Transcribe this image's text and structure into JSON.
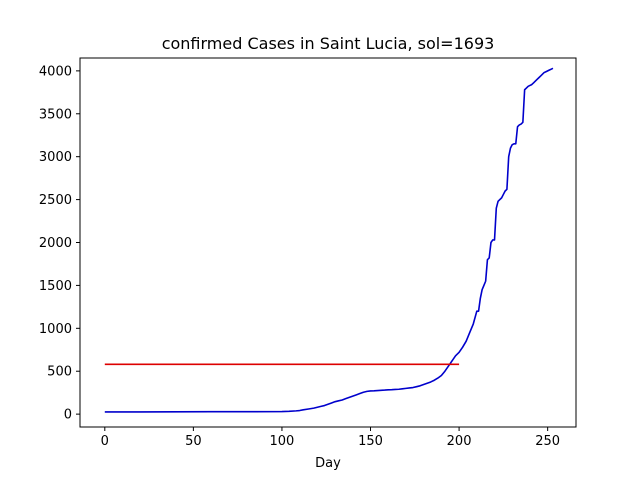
{
  "chart_data": {
    "type": "line",
    "title": "confirmed Cases in Saint Lucia, sol=1693",
    "xlabel": "Day",
    "ylabel": "",
    "xlim": [
      -14,
      266
    ],
    "ylim": [
      -150,
      4150
    ],
    "xticks": [
      0,
      50,
      100,
      150,
      200,
      250
    ],
    "yticks": [
      0,
      500,
      1000,
      1500,
      2000,
      2500,
      3000,
      3500,
      4000
    ],
    "grid": false,
    "legend": "none",
    "series": [
      {
        "color": "#0000cc",
        "x": [
          0,
          20,
          40,
          60,
          80,
          100,
          104,
          108,
          110,
          112,
          115,
          118,
          120,
          122,
          124,
          126,
          128,
          130,
          132,
          134,
          136,
          138,
          140,
          142,
          144,
          146,
          148,
          150,
          152,
          154,
          156,
          158,
          160,
          162,
          164,
          166,
          168,
          170,
          172,
          174,
          176,
          178,
          180,
          182,
          184,
          186,
          188,
          190,
          192,
          194,
          196,
          198,
          200,
          202,
          204,
          206,
          208,
          210,
          211,
          212,
          213,
          214,
          215,
          216,
          217,
          218,
          219,
          220,
          221,
          222,
          223,
          224,
          225,
          226,
          227,
          228,
          229,
          230,
          231,
          232,
          233,
          234,
          235,
          236,
          237,
          238,
          239,
          240,
          241,
          242,
          243,
          244,
          245,
          246,
          247,
          248,
          249,
          250,
          251,
          252,
          253
        ],
        "y": [
          25,
          25,
          27,
          28,
          28,
          30,
          33,
          38,
          42,
          50,
          60,
          70,
          80,
          90,
          100,
          115,
          130,
          145,
          155,
          165,
          180,
          195,
          210,
          225,
          240,
          255,
          265,
          270,
          272,
          275,
          278,
          280,
          283,
          285,
          288,
          290,
          295,
          300,
          305,
          310,
          320,
          330,
          345,
          360,
          375,
          395,
          420,
          450,
          500,
          560,
          620,
          680,
          720,
          780,
          850,
          950,
          1050,
          1200,
          1200,
          1350,
          1450,
          1500,
          1550,
          1800,
          1820,
          2000,
          2030,
          2030,
          2400,
          2480,
          2500,
          2520,
          2560,
          2600,
          2620,
          3000,
          3100,
          3140,
          3150,
          3150,
          3350,
          3370,
          3380,
          3400,
          3780,
          3800,
          3820,
          3830,
          3840,
          3860,
          3880,
          3900,
          3920,
          3940,
          3960,
          3980,
          3990,
          4000,
          4010,
          4020,
          4030
        ]
      },
      {
        "color": "#dd0000",
        "x": [
          0,
          200
        ],
        "y": [
          580,
          580
        ]
      }
    ]
  }
}
